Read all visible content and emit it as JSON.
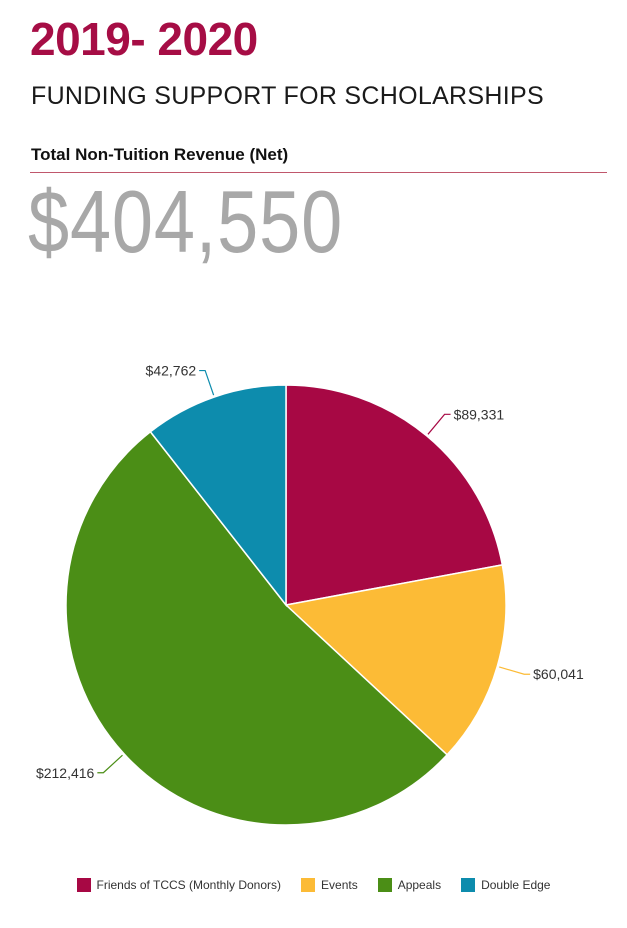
{
  "header": {
    "year": "2019- 2020",
    "subtitle": "FUNDING SUPPORT FOR SCHOLARSHIPS",
    "revenue_label": "Total Non-Tuition Revenue (Net)",
    "total": "$404,550"
  },
  "colors": {
    "accent": "#a60d45",
    "total_text": "#a8a8a8"
  },
  "chart_data": {
    "type": "pie",
    "title": "",
    "start": "12 o'clock, clockwise",
    "slices": [
      {
        "name": "Friends of TCCS (Monthly Donors)",
        "value": 89331,
        "label": "$89,331",
        "color": "#a70844"
      },
      {
        "name": "Events",
        "value": 60041,
        "label": "$60,041",
        "color": "#fcbb36"
      },
      {
        "name": "Appeals",
        "value": 212416,
        "label": "$212,416",
        "color": "#4b8e16"
      },
      {
        "name": "Double Edge",
        "value": 42762,
        "label": "$42,762",
        "color": "#0d8cad"
      }
    ],
    "legend_position": "bottom"
  }
}
